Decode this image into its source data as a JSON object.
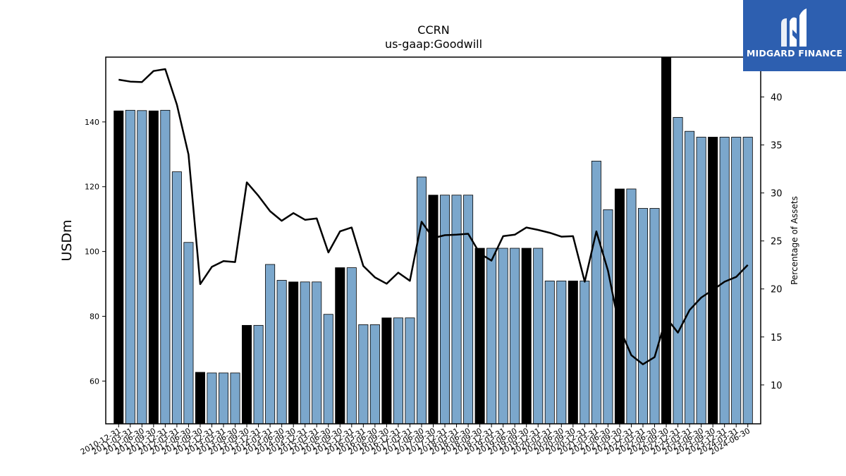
{
  "chart_data": {
    "type": "bar",
    "title": "CCRN",
    "subtitle": "us-gaap:Goodwill",
    "ylabel": "USDm",
    "ylabel_right": "Percentage of Assets",
    "ylim": [
      46.8,
      160
    ],
    "ylim_right": [
      5.95,
      44.15
    ],
    "yticks": [
      60,
      80,
      100,
      120,
      140
    ],
    "yticks_right": [
      10,
      15,
      20,
      25,
      30,
      35,
      40
    ],
    "categories": [
      "2010-12-31",
      "2011-03-31",
      "2011-06-30",
      "2011-09-30",
      "2011-12-31",
      "2012-03-31",
      "2012-06-30",
      "2012-09-30",
      "2012-12-31",
      "2013-03-31",
      "2013-06-30",
      "2013-09-30",
      "2013-12-31",
      "2014-03-31",
      "2014-06-30",
      "2014-09-30",
      "2014-12-31",
      "2015-03-31",
      "2015-06-30",
      "2015-09-30",
      "2015-12-31",
      "2016-03-31",
      "2016-06-30",
      "2016-09-30",
      "2016-12-31",
      "2017-03-31",
      "2017-06-30",
      "2017-09-30",
      "2017-12-31",
      "2018-03-31",
      "2018-06-30",
      "2018-09-30",
      "2018-12-31",
      "2019-03-31",
      "2019-06-30",
      "2019-09-30",
      "2019-12-31",
      "2020-03-31",
      "2020-06-30",
      "2020-09-30",
      "2020-12-31",
      "2021-03-31",
      "2021-06-30",
      "2021-09-30",
      "2021-12-31",
      "2022-03-31",
      "2022-06-30",
      "2022-09-30",
      "2022-12-31",
      "2023-03-31",
      "2023-06-30",
      "2023-09-30",
      "2023-12-31",
      "2024-03-31",
      "2024-06-30"
    ],
    "series": [
      {
        "type": "bar",
        "values": [
          143.4,
          143.6,
          143.5,
          143.4,
          143.6,
          124.6,
          102.8,
          62.7,
          62.5,
          62.5,
          62.5,
          77.2,
          77.2,
          96.0,
          91.1,
          90.6,
          90.6,
          90.6,
          80.6,
          95.0,
          95.0,
          77.4,
          77.4,
          79.5,
          79.5,
          79.5,
          123.0,
          117.4,
          117.4,
          117.4,
          117.4,
          101.0,
          101.0,
          101.0,
          101.0,
          101.0,
          101.0,
          90.9,
          90.9,
          90.9,
          90.9,
          127.9,
          112.9,
          119.3,
          119.3,
          113.3,
          113.3,
          160.0,
          141.4,
          137.1,
          135.3,
          135.3,
          135.3,
          135.3,
          135.3
        ],
        "year_end": [
          true,
          false,
          false,
          true,
          false,
          false,
          false,
          true,
          false,
          false,
          false,
          true,
          false,
          false,
          false,
          true,
          false,
          false,
          false,
          true,
          false,
          false,
          false,
          true,
          false,
          false,
          false,
          true,
          false,
          false,
          false,
          true,
          false,
          false,
          false,
          true,
          false,
          false,
          false,
          true,
          false,
          false,
          false,
          true,
          false,
          false,
          false,
          true,
          false,
          false,
          false,
          true,
          false,
          false,
          false
        ],
        "color_year_end": "#000000",
        "color_quarter": "#7ba7cc"
      },
      {
        "type": "line",
        "axis": "right",
        "values": [
          41.8,
          41.6,
          41.55,
          42.7,
          42.9,
          39.2,
          34.0,
          20.5,
          22.3,
          22.9,
          22.8,
          31.1,
          29.7,
          28.1,
          27.1,
          27.9,
          27.2,
          27.35,
          23.8,
          26.0,
          26.4,
          22.4,
          21.2,
          20.55,
          21.7,
          20.85,
          27.0,
          25.3,
          25.6,
          25.65,
          25.75,
          23.7,
          22.95,
          25.5,
          25.65,
          26.4,
          26.15,
          25.85,
          25.45,
          25.5,
          20.75,
          26.0,
          21.9,
          15.9,
          13.1,
          12.15,
          12.9,
          17.0,
          15.45,
          17.8,
          19.1,
          19.9,
          20.75,
          21.25,
          22.5
        ],
        "color": "#000000"
      }
    ],
    "grid": false,
    "legend": "none"
  },
  "brand": {
    "name": "MIDGARD FINANCE",
    "color": "#2d5fb0"
  }
}
